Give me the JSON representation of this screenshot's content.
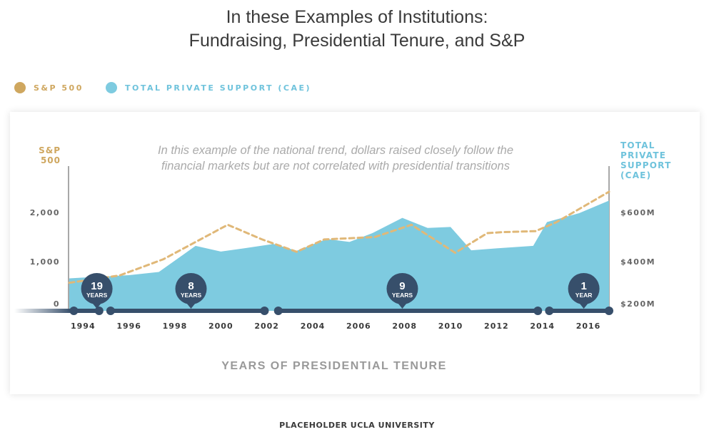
{
  "title_line1": "In these Examples of Institutions:",
  "title_line2": "Fundraising, Presidential Tenure, and S&P",
  "legend": [
    {
      "label": "S&P 500",
      "color": "#cfa75f"
    },
    {
      "label": "TOTAL PRIVATE SUPPORT (CAE)",
      "color": "#7ecbe0"
    }
  ],
  "footer": "PLACEHOLDER UCLA UNIVERSITY",
  "colors": {
    "sp500": "#e0b878",
    "sp500_label": "#cfa75f",
    "cae_fill": "#7ecbe0",
    "cae_label": "#6fc3dc",
    "timeline": "#374f6b",
    "tick_text": "#3a3a3a",
    "axis_text": "#666666",
    "annotation_text": "#aaaaaa",
    "xlabel_text": "#999999"
  },
  "chart_data": {
    "type": "area",
    "annotation": [
      "In this example of the national trend, dollars raised closely follow the",
      "financial markets but are not correlated with presidential transitions"
    ],
    "left_axis": {
      "label": [
        "S&P",
        "500"
      ],
      "ticks": [
        {
          "value": 0,
          "label": "0"
        },
        {
          "value": 1000,
          "label": "1,000"
        },
        {
          "value": 2000,
          "label": "2,000"
        }
      ],
      "range": [
        0,
        2000
      ]
    },
    "right_axis": {
      "label": [
        "TOTAL",
        "PRIVATE",
        "SUPPORT",
        "(CAE)"
      ],
      "ticks": [
        {
          "value": 200,
          "label": "$200M"
        },
        {
          "value": 400,
          "label": "$400M"
        },
        {
          "value": 600,
          "label": "$600M"
        }
      ],
      "range": [
        200,
        600
      ]
    },
    "xlabel": "YEARS OF PRESIDENTIAL TENURE",
    "x_ticks": [
      "1994",
      "1996",
      "1998",
      "2000",
      "2002",
      "2004",
      "2006",
      "2008",
      "2010",
      "2012",
      "2014",
      "2016"
    ],
    "x_range": [
      1993.4,
      2016.9
    ],
    "series": [
      {
        "name": "TOTAL PRIVATE SUPPORT (CAE)",
        "style": "area",
        "axis": "right",
        "x": [
          1993.4,
          1994.0,
          1996.0,
          1997.3,
          1998.9,
          2000.0,
          2001.0,
          2002.3,
          2003.3,
          2004.6,
          2005.6,
          2006.6,
          2007.9,
          2009.0,
          2010.0,
          2010.9,
          2012.0,
          2013.6,
          2014.2,
          2015.6,
          2016.9
        ],
        "values": [
          332,
          335,
          345,
          358,
          464,
          441,
          454,
          472,
          444,
          492,
          480,
          516,
          578,
          537,
          541,
          446,
          454,
          464,
          561,
          597,
          648
        ]
      },
      {
        "name": "S&P 500",
        "style": "dashed-line",
        "axis": "left",
        "x": [
          1993.4,
          1995.6,
          1997.5,
          2000.3,
          2001.8,
          2003.3,
          2004.5,
          2006.7,
          2008.3,
          2010.2,
          2011.6,
          2012.3,
          2013.7,
          2014.6,
          2016.9
        ],
        "values": [
          570,
          720,
          1050,
          1750,
          1450,
          1200,
          1450,
          1500,
          1750,
          1180,
          1580,
          1600,
          1620,
          1800,
          2420
        ]
      }
    ],
    "tenures": [
      {
        "value": "19",
        "unit": "YEARS",
        "start": 1993.6,
        "end": 1994.7,
        "label_x": 1994.6
      },
      {
        "value": "8",
        "unit": "YEARS",
        "start": 1995.2,
        "end": 2001.9,
        "label_x": 1998.7
      },
      {
        "value": "9",
        "unit": "YEARS",
        "start": 2002.5,
        "end": 2013.8,
        "label_x": 2007.9
      },
      {
        "value": "1",
        "unit": "YEAR",
        "start": 2014.3,
        "end": 2016.9,
        "label_x": 2015.8
      }
    ]
  }
}
